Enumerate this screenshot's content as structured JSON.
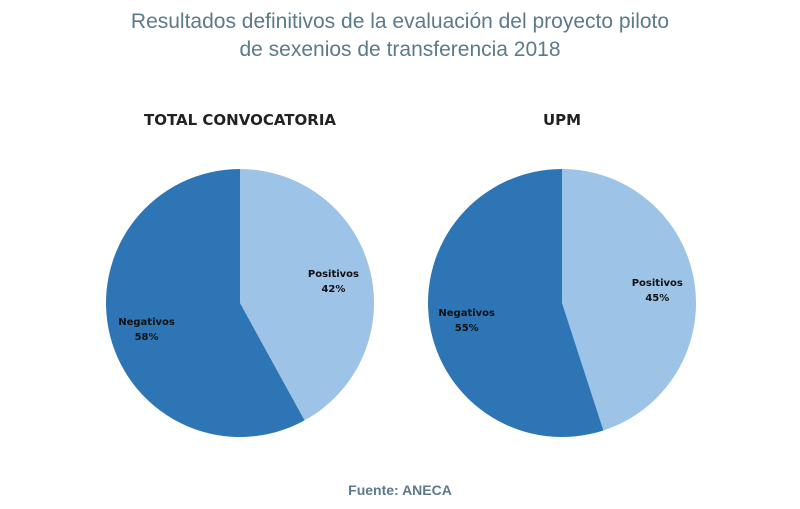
{
  "chart_data": {
    "type": "pie",
    "title": "Resultados definitivos de la evaluación del proyecto piloto de sexenios de transferencia 2018",
    "title_lines": [
      "Resultados definitivos de la evaluación del proyecto piloto",
      "de sexenios de transferencia 2018"
    ],
    "source": "Fuente: ANECA",
    "colors": {
      "Positivos": "#9dc3e6",
      "Negativos": "#2e75b6",
      "title": "#5b7a8a"
    },
    "charts": [
      {
        "title": "TOTAL CONVOCATORIA",
        "slices": [
          {
            "label": "Positivos",
            "value": 42,
            "display": "42%"
          },
          {
            "label": "Negativos",
            "value": 58,
            "display": "58%"
          }
        ]
      },
      {
        "title": "UPM",
        "slices": [
          {
            "label": "Positivos",
            "value": 45,
            "display": "45%"
          },
          {
            "label": "Negativos",
            "value": 55,
            "display": "55%"
          }
        ]
      }
    ]
  }
}
